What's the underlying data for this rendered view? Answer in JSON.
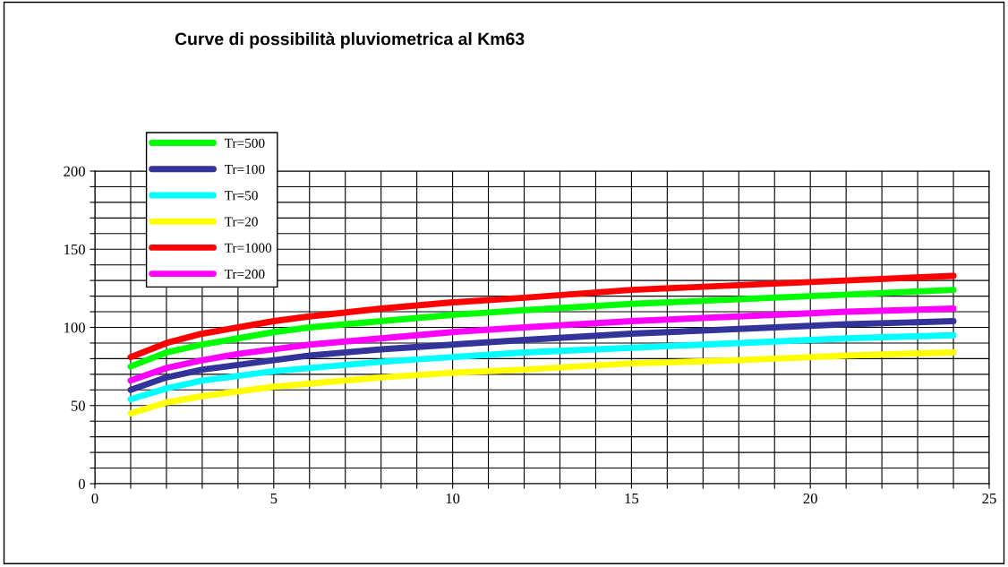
{
  "chart_data": {
    "type": "line",
    "title": "Curve di possibilità pluviometrica al Km63",
    "x": [
      1,
      2,
      3,
      4,
      5,
      6,
      8,
      10,
      12,
      15,
      18,
      21,
      24
    ],
    "series": [
      {
        "name": "Tr=500",
        "color": "#00ff00",
        "values": [
          75,
          84,
          89,
          93,
          97,
          100,
          104,
          108,
          111,
          115,
          118,
          121,
          124
        ]
      },
      {
        "name": "Tr=100",
        "color": "#333399",
        "values": [
          60,
          68,
          73,
          76,
          79,
          82,
          86,
          89,
          92,
          96,
          99,
          102,
          104
        ]
      },
      {
        "name": "Tr=50",
        "color": "#00ffff",
        "values": [
          54,
          61,
          66,
          69,
          72,
          74,
          78,
          81,
          84,
          87,
          90,
          93,
          95
        ]
      },
      {
        "name": "Tr=20",
        "color": "#ffff00",
        "values": [
          45,
          52,
          56,
          59,
          62,
          64,
          68,
          71,
          73,
          77,
          79,
          82,
          84
        ]
      },
      {
        "name": "Tr=1000",
        "color": "#ff0000",
        "values": [
          81,
          90,
          96,
          100,
          104,
          107,
          112,
          116,
          119,
          124,
          127,
          130,
          133
        ]
      },
      {
        "name": "Tr=200",
        "color": "#ff00ff",
        "values": [
          66,
          74,
          79,
          83,
          86,
          89,
          93,
          97,
          100,
          104,
          107,
          110,
          112
        ]
      }
    ],
    "xlim": [
      0,
      25
    ],
    "ylim": [
      0,
      200
    ],
    "xticks": [
      0,
      {
        "value": 1,
        "label": null
      },
      {
        "value": 2,
        "label": null
      },
      {
        "value": 3,
        "label": null
      },
      {
        "value": 4,
        "label": null
      },
      5,
      {
        "value": 6,
        "label": null
      },
      {
        "value": 7,
        "label": null
      },
      {
        "value": 8,
        "label": null
      },
      {
        "value": 9,
        "label": null
      },
      10,
      {
        "value": 11,
        "label": null
      },
      {
        "value": 12,
        "label": null
      },
      {
        "value": 13,
        "label": null
      },
      {
        "value": 14,
        "label": null
      },
      15,
      {
        "value": 16,
        "label": null
      },
      {
        "value": 17,
        "label": null
      },
      {
        "value": 18,
        "label": null
      },
      {
        "value": 19,
        "label": null
      },
      20,
      {
        "value": 21,
        "label": null
      },
      {
        "value": 22,
        "label": null
      },
      {
        "value": 23,
        "label": null
      },
      {
        "value": 24,
        "label": null
      },
      25
    ],
    "yticks": [
      0,
      {
        "value": 10,
        "label": null
      },
      {
        "value": 20,
        "label": null
      },
      {
        "value": 30,
        "label": null
      },
      {
        "value": 40,
        "label": null
      },
      50,
      {
        "value": 60,
        "label": null
      },
      {
        "value": 70,
        "label": null
      },
      {
        "value": 80,
        "label": null
      },
      {
        "value": 90,
        "label": null
      },
      100,
      {
        "value": 110,
        "label": null
      },
      {
        "value": 120,
        "label": null
      },
      {
        "value": 130,
        "label": null
      },
      {
        "value": 140,
        "label": null
      },
      150,
      {
        "value": 160,
        "label": null
      },
      {
        "value": 170,
        "label": null
      },
      {
        "value": 180,
        "label": null
      },
      {
        "value": 190,
        "label": null
      },
      200
    ],
    "grid": true,
    "legend": "top left",
    "marker": "none",
    "line_style": "solid"
  }
}
